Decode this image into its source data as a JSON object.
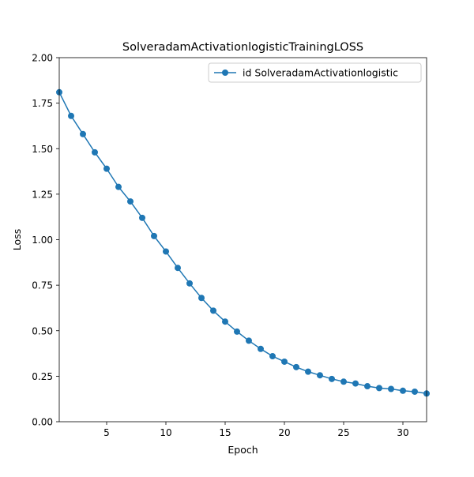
{
  "chart_data": {
    "type": "line",
    "title": "SolveradamActivationlogisticTrainingLOSS",
    "xlabel": "Epoch",
    "ylabel": "Loss",
    "xlim": [
      1,
      32
    ],
    "ylim": [
      0,
      2
    ],
    "xticks": [
      5,
      10,
      15,
      20,
      25,
      30
    ],
    "yticks": [
      0.0,
      0.25,
      0.5,
      0.75,
      1.0,
      1.25,
      1.5,
      1.75,
      2.0
    ],
    "xtick_labels": [
      "5",
      "10",
      "15",
      "20",
      "25",
      "30"
    ],
    "ytick_labels": [
      "0.00",
      "0.25",
      "0.50",
      "0.75",
      "1.00",
      "1.25",
      "1.50",
      "1.75",
      "2.00"
    ],
    "grid": false,
    "legend": "top-right",
    "series": [
      {
        "name": "id SolveradamActivationlogistic",
        "color": "#1f77b4",
        "marker": "circle",
        "x": [
          1,
          2,
          3,
          4,
          5,
          6,
          7,
          8,
          9,
          10,
          11,
          12,
          13,
          14,
          15,
          16,
          17,
          18,
          19,
          20,
          21,
          22,
          23,
          24,
          25,
          26,
          27,
          28,
          29,
          30,
          31,
          32
        ],
        "y": [
          1.81,
          1.68,
          1.58,
          1.48,
          1.39,
          1.29,
          1.21,
          1.12,
          1.02,
          0.935,
          0.845,
          0.76,
          0.68,
          0.61,
          0.55,
          0.495,
          0.445,
          0.4,
          0.36,
          0.33,
          0.3,
          0.275,
          0.255,
          0.235,
          0.22,
          0.21,
          0.195,
          0.185,
          0.18,
          0.17,
          0.165,
          0.155
        ]
      }
    ]
  }
}
